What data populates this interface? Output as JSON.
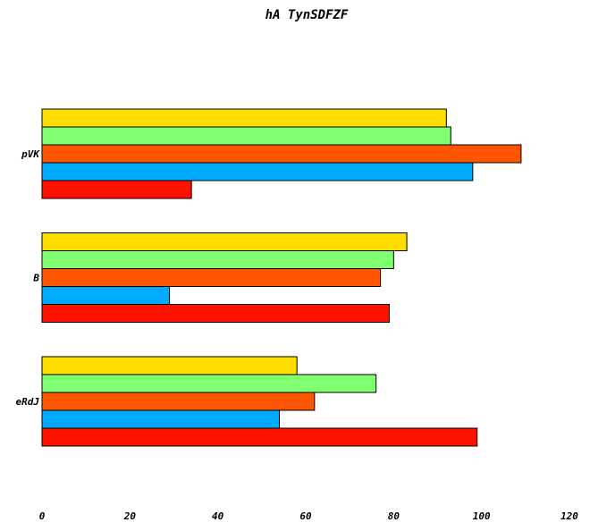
{
  "chart_data": {
    "type": "bar",
    "orientation": "horizontal",
    "title": "hA TynSDFZF",
    "xlabel": "",
    "ylabel": "",
    "categories": [
      "eRdJ",
      "B",
      "pVK"
    ],
    "xlim": [
      0,
      120
    ],
    "xticks": [
      "0",
      "20",
      "40",
      "60",
      "80",
      "100",
      "120"
    ],
    "grid": false,
    "legend": "none",
    "series": [
      {
        "color": "#ff1100",
        "values": [
          99,
          79,
          34
        ]
      },
      {
        "color": "#00aaff",
        "values": [
          54,
          29,
          98
        ]
      },
      {
        "color": "#ff5500",
        "values": [
          62,
          77,
          109
        ]
      },
      {
        "color": "#80ff70",
        "values": [
          76,
          80,
          93
        ]
      },
      {
        "color": "#ffdd00",
        "values": [
          58,
          83,
          92
        ]
      }
    ]
  }
}
